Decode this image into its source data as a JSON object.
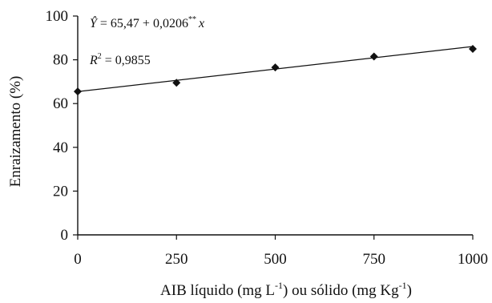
{
  "chart_data": {
    "type": "scatter",
    "xlabel_parts": {
      "main": "AIB líquido (mg L",
      "sup1": "-1",
      "mid": ") ou sólido (mg Kg",
      "sup2": "-1",
      "end": ")"
    },
    "ylabel": "Enraizamento (%)",
    "x_ticks": [
      0,
      250,
      500,
      750,
      1000
    ],
    "y_ticks": [
      0,
      20,
      40,
      60,
      80,
      100
    ],
    "xlim": [
      0,
      1000
    ],
    "ylim": [
      0,
      100
    ],
    "grid": false,
    "series": [
      {
        "x": [
          0,
          250,
          500,
          750,
          1000
        ],
        "values": [
          65.5,
          69.5,
          76.5,
          81.5,
          85
        ],
        "marker": "diamond"
      }
    ],
    "trendline": {
      "intercept": 65.47,
      "slope": 0.0206,
      "x_range": [
        0,
        1000
      ]
    },
    "equation": {
      "lhs": "Ŷ",
      "eq": " = 65,47 + 0,0206",
      "sup": "**",
      "var": "x"
    },
    "r2": {
      "label": "R",
      "sup": "2",
      "eq": " = 0,9855"
    },
    "colors": {
      "marker": "#111111",
      "line": "#111111",
      "axis": "#111111"
    }
  }
}
